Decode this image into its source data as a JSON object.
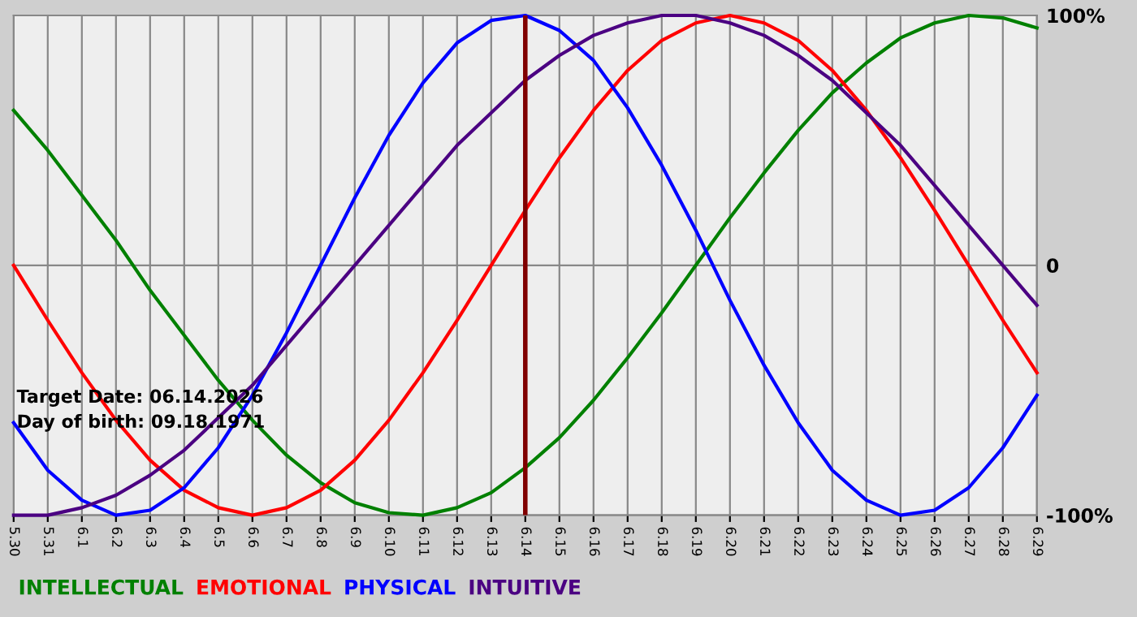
{
  "chart_data": {
    "type": "line",
    "categories": [
      "5.30",
      "5.31",
      "6.1",
      "6.2",
      "6.3",
      "6.4",
      "6.5",
      "6.6",
      "6.7",
      "6.8",
      "6.9",
      "6.10",
      "6.11",
      "6.12",
      "6.13",
      "6.14",
      "6.15",
      "6.16",
      "6.17",
      "6.18",
      "6.19",
      "6.20",
      "6.21",
      "6.22",
      "6.23",
      "6.24",
      "6.25",
      "6.26",
      "6.27",
      "6.28",
      "6.29"
    ],
    "series": [
      {
        "name": "INTELLECTUAL",
        "color": "#008000",
        "values": [
          62,
          46,
          28,
          10,
          -10,
          -28,
          -46,
          -62,
          -76,
          -87,
          -95,
          -99,
          -100,
          -97,
          -91,
          -81,
          -69,
          -54,
          -37,
          -19,
          0,
          19,
          37,
          54,
          69,
          81,
          91,
          97,
          100,
          99,
          95
        ]
      },
      {
        "name": "EMOTIONAL",
        "color": "#ff0000",
        "values": [
          0,
          -22,
          -43,
          -62,
          -78,
          -90,
          -97,
          -100,
          -97,
          -90,
          -78,
          -62,
          -43,
          -22,
          0,
          22,
          43,
          62,
          78,
          90,
          97,
          100,
          97,
          90,
          78,
          62,
          43,
          22,
          0,
          -22,
          -43
        ]
      },
      {
        "name": "PHYSICAL",
        "color": "#0000ff",
        "values": [
          -63,
          -82,
          -94,
          -100,
          -98,
          -89,
          -73,
          -52,
          -27,
          0,
          27,
          52,
          73,
          89,
          98,
          100,
          94,
          82,
          63,
          40,
          14,
          -14,
          -40,
          -63,
          -82,
          -94,
          -100,
          -98,
          -89,
          -73,
          -52
        ]
      },
      {
        "name": "INTUITIVE",
        "color": "#4b0082",
        "values": [
          -100,
          -100,
          -97,
          -92,
          -84,
          -74,
          -61,
          -48,
          -32,
          -16,
          0,
          16,
          32,
          48,
          61,
          74,
          84,
          92,
          97,
          100,
          100,
          97,
          92,
          84,
          74,
          61,
          48,
          32,
          16,
          0,
          -16
        ]
      }
    ],
    "ylim": [
      -100,
      100
    ],
    "yticks": [
      {
        "value": 100,
        "label": "100%"
      },
      0,
      {
        "value": -100,
        "label": "-100%"
      }
    ],
    "ref_lines": [
      {
        "axis": "x",
        "value": "6.14",
        "color": "#800000"
      }
    ],
    "annotations": [
      "Target Date: 06.14.2026",
      "Day of birth: 09.18.1971"
    ],
    "grid": true,
    "legend": "bottom",
    "marker": "none",
    "line_style": "solid"
  }
}
